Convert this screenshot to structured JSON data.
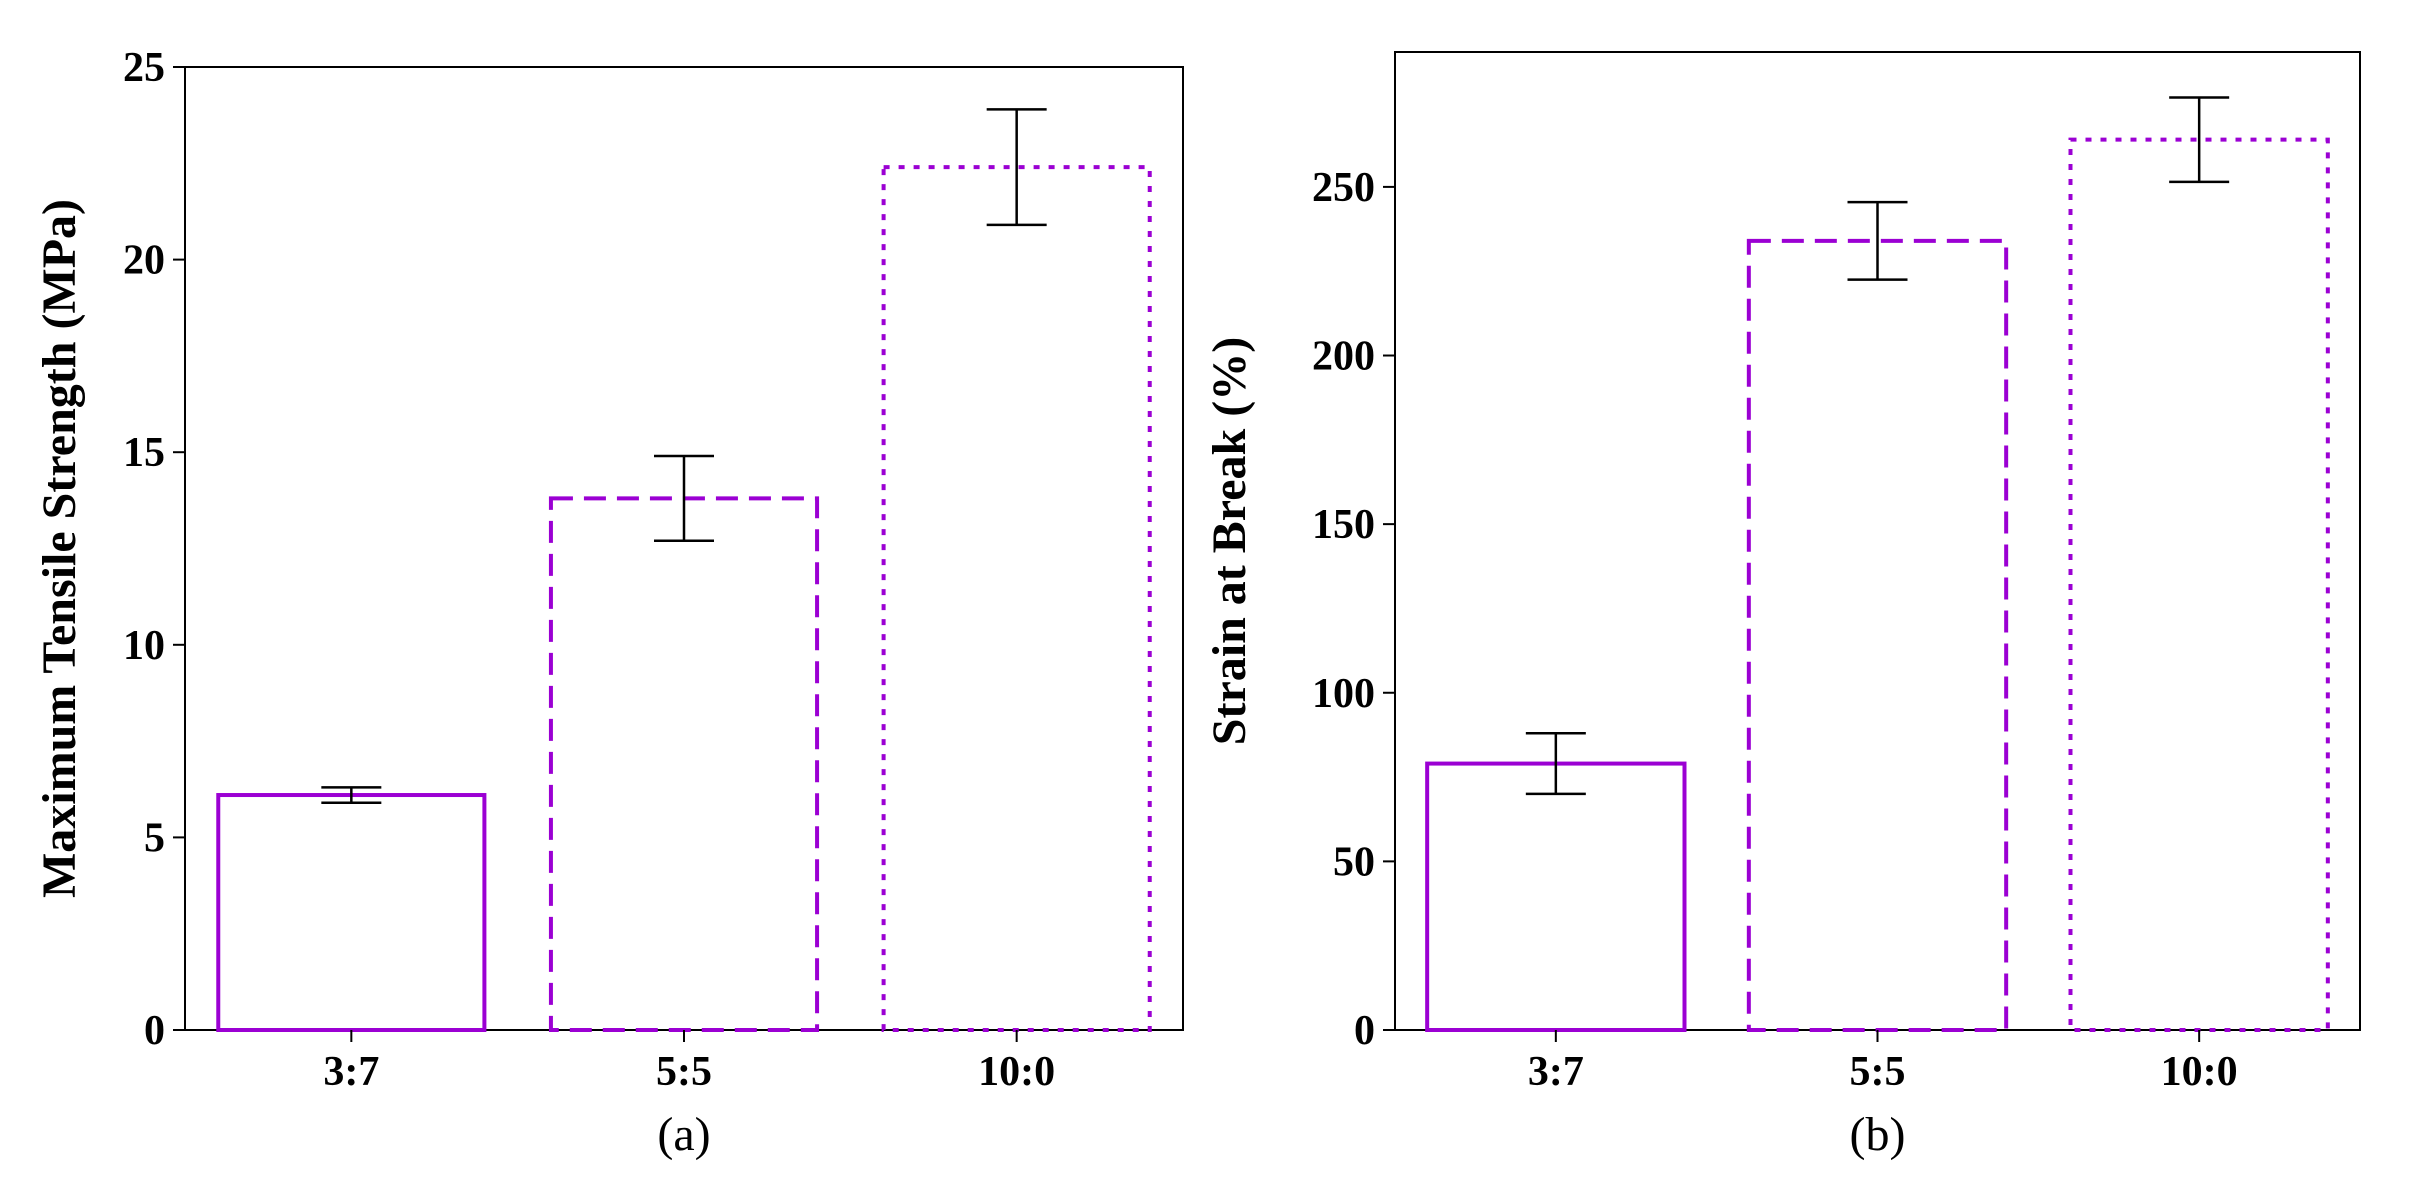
{
  "chart_data": [
    {
      "type": "bar",
      "panel_label": "(a)",
      "ylabel": "Maximum Tensile Strength (MPa)",
      "xlabel": "",
      "categories": [
        "3:7",
        "5:5",
        "10:0"
      ],
      "values": [
        6.1,
        13.8,
        22.4
      ],
      "errors": [
        0.2,
        1.1,
        1.5
      ],
      "ylim": [
        0,
        25
      ],
      "yticks": [
        0,
        5,
        10,
        15,
        20,
        25
      ],
      "bar_styles": [
        "solid",
        "dashed",
        "dotted"
      ],
      "bar_color": "#9b00d3",
      "grid": false
    },
    {
      "type": "bar",
      "panel_label": "(b)",
      "ylabel": "Strain at Break (%)",
      "xlabel": "",
      "categories": [
        "3:7",
        "5:5",
        "10:0"
      ],
      "values": [
        79,
        234,
        264
      ],
      "errors": [
        9,
        11.5,
        12.5
      ],
      "ylim": [
        0,
        290
      ],
      "yticks": [
        0,
        50,
        100,
        150,
        200,
        250
      ],
      "bar_styles": [
        "solid",
        "dashed",
        "dotted"
      ],
      "bar_color": "#9b00d3",
      "grid": false
    }
  ]
}
